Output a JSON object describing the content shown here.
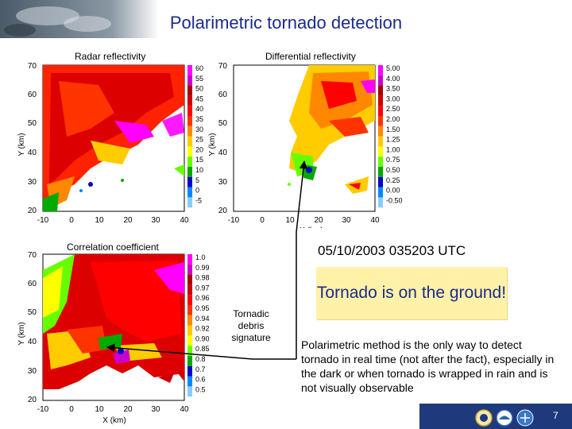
{
  "title": "Polarimetric tornado detection",
  "timestamp": "05/10/2003   035203 UTC",
  "callout": "Tornado is on the ground!",
  "tds_label": [
    "Tornadic",
    "debris",
    "signature"
  ],
  "body_text": "Polarimetric method is the only way to detect tornado in real time (not after the fact), especially in the dark or when tornado is wrapped in rain and is not visually observable",
  "page_number": "7",
  "panels": {
    "reflectivity": {
      "title": "Radar reflectivity",
      "colorbar": [
        "60",
        "55",
        "50",
        "45",
        "40",
        "35",
        "30",
        "25",
        "20",
        "15",
        "10",
        "5",
        "0",
        "-5"
      ],
      "colors": [
        "#ff00ff",
        "#cc00cc",
        "#aa0000",
        "#cc0000",
        "#ff0000",
        "#ff3300",
        "#ff8800",
        "#ffcc00",
        "#ffff00",
        "#66ff00",
        "#00aa00",
        "#0000cc",
        "#0088ff",
        "#88ccff"
      ]
    },
    "zdr": {
      "title": "Differential reflectivity",
      "colorbar": [
        "5.00",
        "4.00",
        "3.50",
        "3.00",
        "2.50",
        "2.00",
        "1.50",
        "1.25",
        "1.00",
        "0.75",
        "0.50",
        "0.25",
        "0.00",
        "-0.50"
      ],
      "colors": [
        "#ff00ff",
        "#cc00cc",
        "#aa0000",
        "#cc0000",
        "#ff0000",
        "#ff3300",
        "#ff8800",
        "#ffcc00",
        "#ffff00",
        "#66ff00",
        "#00aa00",
        "#0000cc",
        "#0088ff",
        "#88ccff"
      ]
    },
    "rhohv": {
      "title": "Correlation coefficient",
      "colorbar": [
        "1.0",
        "0.99",
        "0.98",
        "0.97",
        "0.96",
        "0.95",
        "0.94",
        "0.92",
        "0.90",
        "0.85",
        "0.8",
        "0.7",
        "0.6",
        "0.5"
      ],
      "colors": [
        "#ff00ff",
        "#cc00cc",
        "#aa0000",
        "#cc0000",
        "#ff0000",
        "#ff3300",
        "#ff8800",
        "#ffcc00",
        "#ffff00",
        "#66ff00",
        "#00aa00",
        "#0000cc",
        "#0088ff",
        "#88ccff"
      ]
    },
    "xlabel": "X (km)",
    "ylabel": "Y (km)",
    "xticks": [
      "-10",
      "0",
      "10",
      "20",
      "30",
      "40"
    ],
    "yticks": [
      "70",
      "60",
      "50",
      "40",
      "30",
      "20"
    ]
  },
  "icons": [
    "doc-seal-icon",
    "noaa-logo-icon",
    "nssl-logo-icon"
  ]
}
